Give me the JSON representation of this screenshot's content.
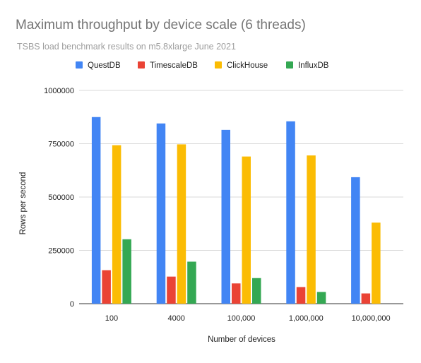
{
  "chart_data": {
    "type": "bar",
    "title": "Maximum throughput by device scale (6 threads)",
    "subtitle": "TSBS load benchmark results on m5.8xlarge June 2021",
    "xlabel": "Number of devices",
    "ylabel": "Rows per second",
    "categories": [
      "100",
      "4000",
      "100,000",
      "1,000,000",
      "10,000,000"
    ],
    "series": [
      {
        "name": "QuestDB",
        "color": "#4285F4",
        "values": [
          875000,
          845000,
          815000,
          855000,
          593000
        ]
      },
      {
        "name": "TimescaleDB",
        "color": "#EA4335",
        "values": [
          157000,
          127000,
          95000,
          78000,
          48000
        ]
      },
      {
        "name": "ClickHouse",
        "color": "#FBBC04",
        "values": [
          743000,
          747000,
          690000,
          695000,
          380000
        ]
      },
      {
        "name": "InfluxDB",
        "color": "#34A853",
        "values": [
          302000,
          197000,
          120000,
          55000,
          0
        ]
      }
    ],
    "ylim": [
      0,
      1000000
    ],
    "yticks": [
      0,
      250000,
      500000,
      750000,
      1000000
    ],
    "ytick_labels": [
      "0",
      "250000",
      "500000",
      "750000",
      "1000000"
    ],
    "grid": true,
    "legend_position": "top"
  }
}
